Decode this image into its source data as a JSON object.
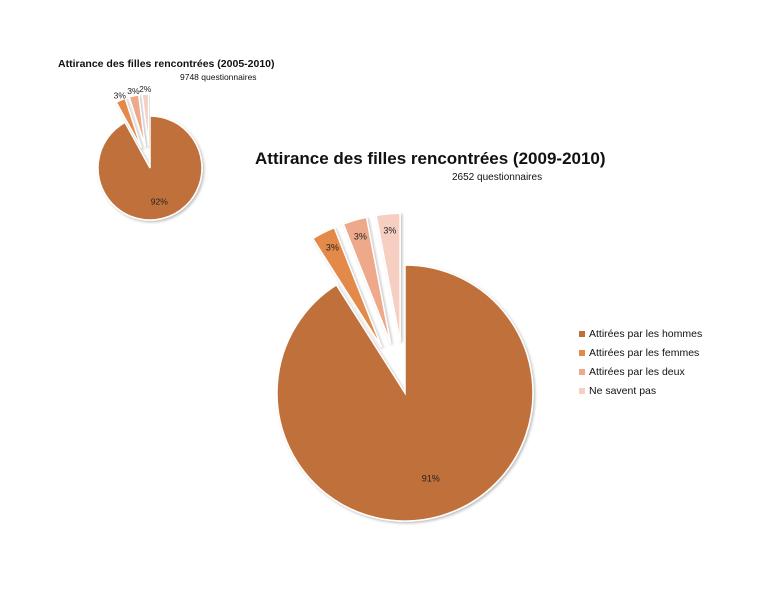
{
  "chart_data": [
    {
      "type": "pie",
      "title": "Attirance des filles rencontrées (2005-2010)",
      "subtitle": "9748 questionnaires",
      "categories": [
        "Attirées par les hommes",
        "Attirées par les femmes",
        "Attirées par les deux",
        "Ne savent pas"
      ],
      "values": [
        92,
        3,
        3,
        2
      ],
      "labels": [
        "92%",
        "3%",
        "3%",
        "2%"
      ],
      "colors": [
        "#c0703a",
        "#e3894a",
        "#eea98a",
        "#f6cfc2"
      ],
      "exploded": [
        false,
        true,
        true,
        true
      ]
    },
    {
      "type": "pie",
      "title": "Attirance des filles rencontrées (2009-2010)",
      "subtitle": "2652 questionnaires",
      "categories": [
        "Attirées par les hommes",
        "Attirées par les femmes",
        "Attirées par les deux",
        "Ne savent pas"
      ],
      "values": [
        91,
        3,
        3,
        3
      ],
      "labels": [
        "91%",
        "3%",
        "3%",
        "3%"
      ],
      "colors": [
        "#c0703a",
        "#e3894a",
        "#eea98a",
        "#f6cfc2"
      ],
      "exploded": [
        false,
        true,
        true,
        true
      ],
      "legend": {
        "position": "right",
        "entries": [
          "Attirées par les hommes",
          "Attirées par les femmes",
          "Attirées par les deux",
          "Ne savent pas"
        ]
      }
    }
  ]
}
